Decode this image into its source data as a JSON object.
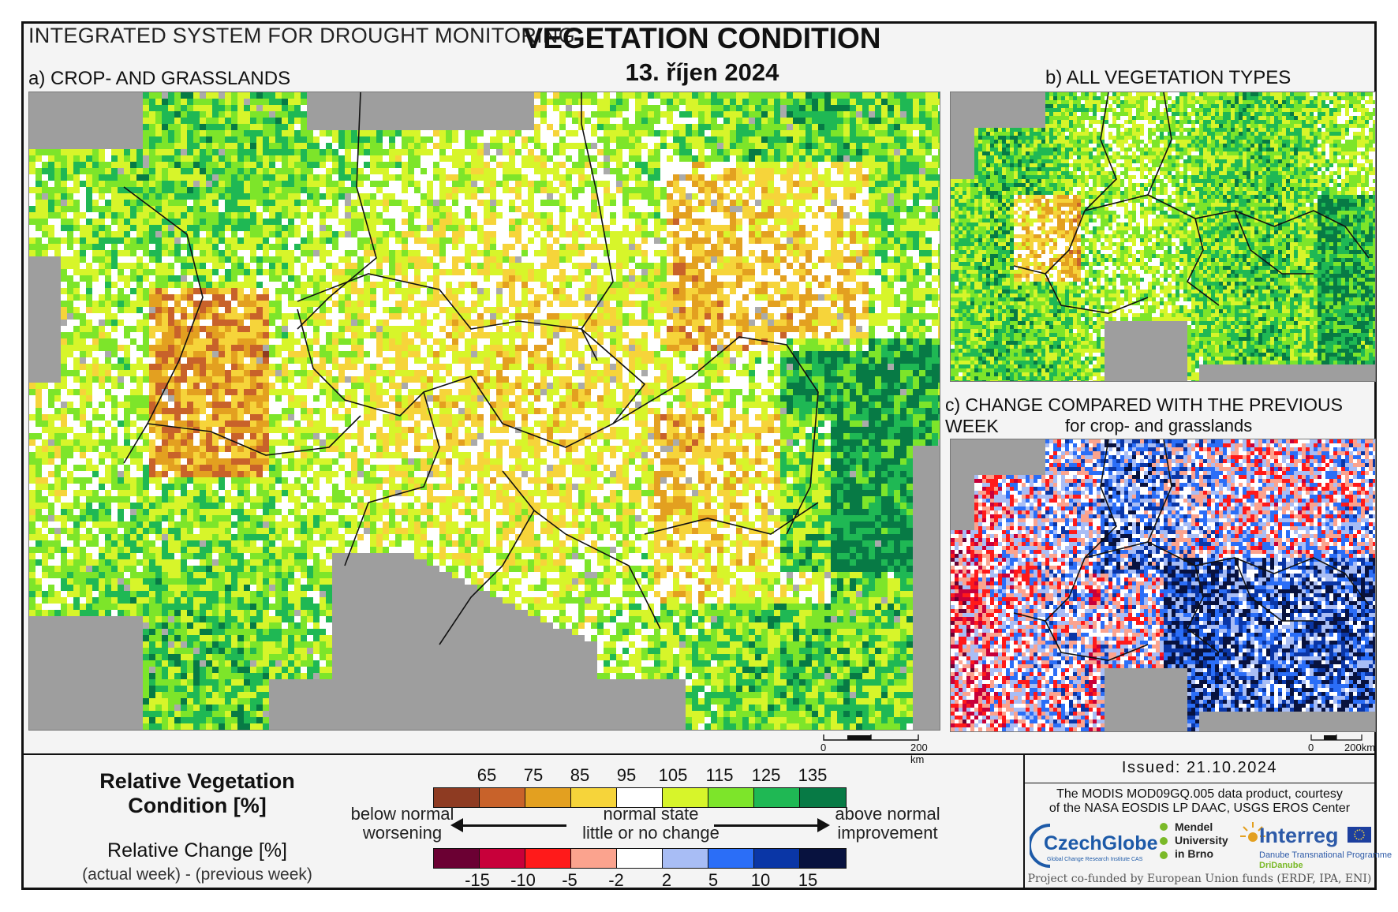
{
  "header": {
    "system": "INTEGRATED SYSTEM FOR DROUGHT MONITORING",
    "title": "VEGETATION CONDITION",
    "date": "13. říjen 2024"
  },
  "panels": {
    "a": {
      "label": "a) CROP- AND GRASSLANDS",
      "scale_zero": "0",
      "scale_label": "200 km"
    },
    "b": {
      "label": "b) ALL VEGETATION TYPES"
    },
    "c": {
      "label": "c) CHANGE COMPARED WITH THE PREVIOUS WEEK",
      "sublabel": "for crop- and grasslands",
      "scale_zero": "0",
      "scale_label": "200km"
    }
  },
  "legend": {
    "rvc_title": "Relative Vegetation Condition [%]",
    "rvc_title_line1": "Relative Vegetation",
    "rvc_title_line2": "Condition [%]",
    "change_title": "Relative Change [%]",
    "change_sub": "(actual week) - (previous week)",
    "rvc_ticks": [
      "65",
      "75",
      "85",
      "95",
      "105",
      "115",
      "125",
      "135"
    ],
    "rvc_colors": [
      "#8e3b22",
      "#c8622a",
      "#e3a020",
      "#f6d43a",
      "#ffffff",
      "#d7f52a",
      "#7de52a",
      "#1fb854",
      "#077a45"
    ],
    "change_ticks": [
      "-15",
      "-10",
      "-5",
      "-2",
      "2",
      "5",
      "10",
      "15"
    ],
    "change_colors": [
      "#6b0033",
      "#c8003a",
      "#ff1a1a",
      "#fba38e",
      "#ffffff",
      "#a8bdf5",
      "#2b6ef7",
      "#0a36a6",
      "#08123f"
    ],
    "below_line1": "below normal",
    "below_line2": "worsening",
    "normal_line1": "normal state",
    "normal_line2": "little or no change",
    "above_line1": "above normal",
    "above_line2": "improvement"
  },
  "footer": {
    "issued": "Issued: 21.10.2024",
    "credit_line1": "The MODIS MOD09GQ.005 data product, courtesy",
    "credit_line2": "of the NASA EOSDIS LP DAAC, USGS EROS Center",
    "czechglobe": "CzechGlobe",
    "czechglobe_sub": "Global Change Research Institute CAS",
    "mendel_line1": "Mendel",
    "mendel_line2": "University",
    "mendel_line3": "in Brno",
    "interreg": "Interreg",
    "interreg_sub1": "Danube Transnational Programme",
    "interreg_sub2": "DriDanube",
    "funded": "Project co-funded by European Union funds (ERDF, IPA, ENI)"
  }
}
